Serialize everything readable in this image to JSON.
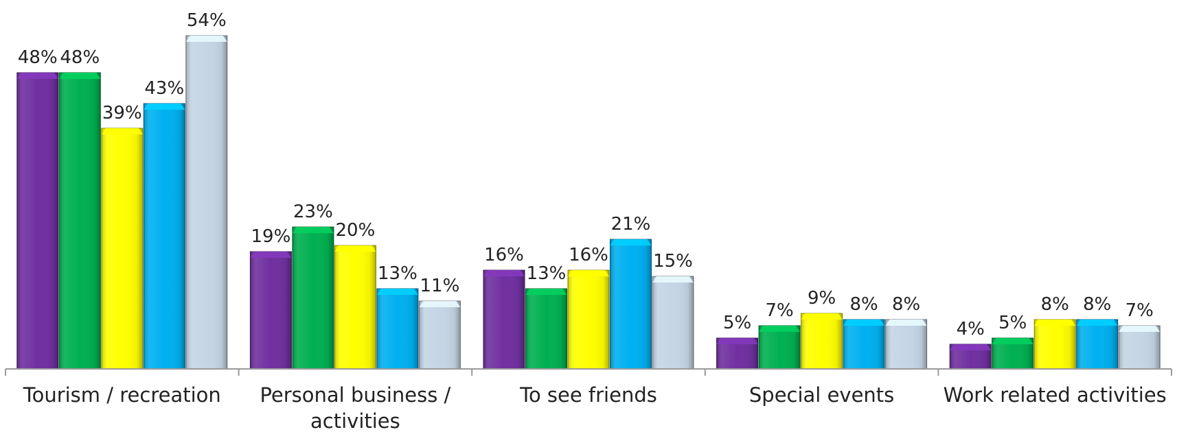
{
  "chart_data": {
    "type": "bar",
    "title": "",
    "xlabel": "",
    "ylabel": "",
    "ylim": [
      0,
      54
    ],
    "grid": false,
    "legend": "none",
    "categories": [
      [
        "Tourism / recreation"
      ],
      [
        "Personal business /",
        "activities"
      ],
      [
        "To see friends"
      ],
      [
        "Special events"
      ],
      [
        "Work related activities"
      ]
    ],
    "series": [
      {
        "color": "#7030a0",
        "values": [
          48,
          19,
          16,
          5,
          4
        ]
      },
      {
        "color": "#00b050",
        "values": [
          48,
          23,
          13,
          7,
          5
        ]
      },
      {
        "color": "#ffff00",
        "values": [
          39,
          20,
          16,
          9,
          8
        ]
      },
      {
        "color": "#00b0f0",
        "values": [
          43,
          13,
          21,
          8,
          8
        ]
      },
      {
        "color": "#c5d5e4",
        "values": [
          54,
          11,
          15,
          8,
          7
        ]
      }
    ],
    "value_suffix": "%"
  }
}
